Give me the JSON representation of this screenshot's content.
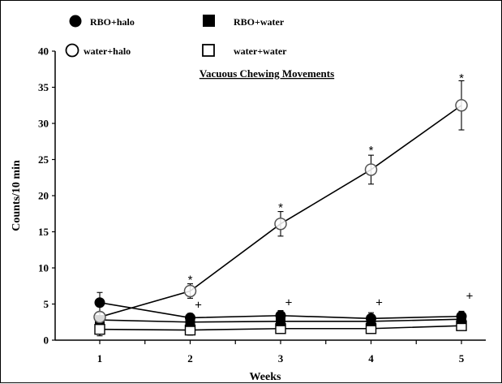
{
  "chart_data": {
    "type": "line",
    "title": "Vacuous Chewing Movements",
    "xlabel": "Weeks",
    "ylabel": "Counts/10 min",
    "x": [
      1,
      2,
      3,
      4,
      5
    ],
    "xticks": [
      "1",
      "2",
      "3",
      "4",
      "5"
    ],
    "ylim": [
      0,
      40
    ],
    "yticks": [
      "0",
      "5",
      "10",
      "15",
      "20",
      "25",
      "30",
      "35",
      "40"
    ],
    "grid": false,
    "legend_position": "top-left",
    "series": [
      {
        "name": "RBO+halo",
        "marker": "filled-circle",
        "values": [
          5.2,
          3.1,
          3.4,
          3.0,
          3.3
        ],
        "errors": [
          1.4,
          0.6,
          0.7,
          0.8,
          0.7
        ]
      },
      {
        "name": "RBO+water",
        "marker": "filled-square",
        "values": [
          2.8,
          2.5,
          2.6,
          2.6,
          2.9
        ],
        "errors": [
          0.5,
          0.5,
          0.5,
          0.5,
          0.5
        ]
      },
      {
        "name": "water+halo",
        "marker": "open-circle",
        "values": [
          3.2,
          6.8,
          16.1,
          23.6,
          32.5
        ],
        "errors": [
          0.7,
          1.0,
          1.7,
          2.0,
          3.4
        ]
      },
      {
        "name": "water+water",
        "marker": "open-square",
        "values": [
          1.5,
          1.4,
          1.6,
          1.6,
          2.0
        ],
        "errors": [
          0.9,
          0.7,
          0.5,
          0.5,
          0.5
        ]
      }
    ],
    "annotations": [
      {
        "text": "*",
        "x": 2,
        "y": 8.6
      },
      {
        "text": "*",
        "x": 3,
        "y": 18.6
      },
      {
        "text": "*",
        "x": 4,
        "y": 26.5
      },
      {
        "text": "*",
        "x": 5,
        "y": 36.5
      },
      {
        "text": "+",
        "x": 2,
        "y": 4.9
      },
      {
        "text": "+",
        "x": 3,
        "y": 5.2
      },
      {
        "text": "+",
        "x": 4,
        "y": 5.2
      },
      {
        "text": "+",
        "x": 5,
        "y": 6.1
      }
    ]
  }
}
